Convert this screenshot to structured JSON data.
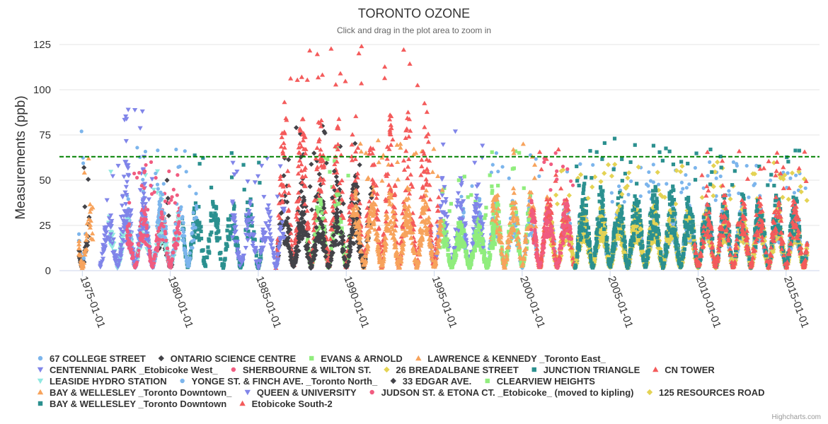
{
  "chart_data": {
    "type": "scatter",
    "title": "TORONTO OZONE",
    "subtitle": "Click and drag in the plot area to zoom in",
    "ylabel": "Measurements (ppb)",
    "ylim": [
      0,
      125
    ],
    "yticks": [
      0,
      25,
      50,
      75,
      100,
      125
    ],
    "xlim": [
      1973.7,
      2016.9
    ],
    "xticks": [
      {
        "label": "1975-01-01",
        "year": 1975
      },
      {
        "label": "1980-01-01",
        "year": 1980
      },
      {
        "label": "1985-01-01",
        "year": 1985
      },
      {
        "label": "1990-01-01",
        "year": 1990
      },
      {
        "label": "1995-01-01",
        "year": 1995
      },
      {
        "label": "2000-01-01",
        "year": 2000
      },
      {
        "label": "2005-01-01",
        "year": 2005
      },
      {
        "label": "2010-01-01",
        "year": 2010
      },
      {
        "label": "2015-01-01",
        "year": 2015
      }
    ],
    "threshold": {
      "value": 63,
      "color": "#008000",
      "style": "dashed"
    },
    "legend_position": "bottom",
    "series": [
      {
        "name": "67 COLLEGE STREET",
        "color": "#7cb5ec",
        "marker": "circle",
        "ranges": [
          [
            1974.8,
            1975.2,
            77
          ],
          [
            1977.5,
            1979.5,
            68
          ],
          [
            1996.5,
            2003.0,
            65
          ],
          [
            2003.0,
            2016.2,
            60
          ]
        ]
      },
      {
        "name": "ONTARIO SCIENCE CENTRE",
        "color": "#434348",
        "marker": "diamond",
        "ranges": [
          [
            1974.8,
            1975.4,
            57
          ],
          [
            1979.3,
            1980.2,
            50
          ],
          [
            1986.0,
            1991.5,
            80
          ]
        ]
      },
      {
        "name": "EVANS & ARNOLD",
        "color": "#90ed7d",
        "marker": "square",
        "ranges": [
          [
            1987.8,
            1990.2,
            68
          ],
          [
            1995.5,
            1998.0,
            52
          ],
          [
            1998.0,
            2000.5,
            66
          ]
        ]
      },
      {
        "name": "LAWRENCE & KENNEDY _Toronto East_",
        "color": "#f7a35c",
        "marker": "triangle",
        "ranges": [
          [
            1974.8,
            1975.6,
            62
          ],
          [
            1990.3,
            1995.2,
            72
          ],
          [
            1998.2,
            2001.5,
            70
          ]
        ]
      },
      {
        "name": "CENTENNIAL PARK _Etobicoke West_",
        "color": "#8085e9",
        "marker": "triangle-down",
        "ranges": [
          [
            1976.9,
            1978.6,
            89
          ],
          [
            1994.8,
            1997.8,
            77
          ]
        ]
      },
      {
        "name": "SHERBOURNE & WILTON ST.",
        "color": "#f15c80",
        "marker": "circle",
        "ranges": [
          [
            1977.8,
            1980.6,
            60
          ],
          [
            2001.0,
            2003.0,
            65
          ]
        ]
      },
      {
        "name": "26 BREADALBANE STREET",
        "color": "#e4d354",
        "marker": "diamond",
        "ranges": [
          [
            2001.5,
            2016.2,
            58
          ]
        ]
      },
      {
        "name": "JUNCTION TRIANGLE",
        "color": "#2b908f",
        "marker": "square",
        "ranges": [
          [
            1980.6,
            1985.2,
            65
          ],
          [
            2003.0,
            2009.5,
            73
          ]
        ]
      },
      {
        "name": "CN TOWER",
        "color": "#f45b5b",
        "marker": "triangle",
        "ranges": [
          [
            1986.0,
            1995.3,
            124
          ],
          [
            2000.5,
            2003.0,
            67
          ]
        ]
      },
      {
        "name": "LEASIDE HYDRO STATION",
        "color": "#91e8e1",
        "marker": "triangle-down",
        "ranges": [
          [
            1976.5,
            1980.5,
            55
          ]
        ]
      },
      {
        "name": "YONGE ST. & FINCH AVE. _Toronto North_",
        "color": "#7cb5ec",
        "marker": "circle",
        "ranges": [
          [
            1979.0,
            1981.5,
            67
          ],
          [
            2008.0,
            2016.2,
            60
          ]
        ]
      },
      {
        "name": "33 EDGAR AVE.",
        "color": "#434348",
        "marker": "diamond",
        "ranges": [
          [
            1986.5,
            1991.0,
            55
          ]
        ]
      },
      {
        "name": "CLEARVIEW HEIGHTS",
        "color": "#90ed7d",
        "marker": "square",
        "ranges": [
          [
            1995.3,
            1998.5,
            50
          ]
        ]
      },
      {
        "name": "BAY & WELLESLEY _Toronto Downtown_",
        "color": "#f7a35c",
        "marker": "triangle",
        "ranges": [
          [
            1990.5,
            1995.5,
            70
          ]
        ]
      },
      {
        "name": "QUEEN & UNIVERSITY",
        "color": "#8085e9",
        "marker": "triangle-down",
        "ranges": [
          [
            1976.0,
            1979.0,
            58
          ],
          [
            1983.5,
            1986.5,
            62
          ]
        ]
      },
      {
        "name": "JUDSON ST. & ETONA CT. _Etobicoke_ (moved to kipling)",
        "color": "#f15c80",
        "marker": "circle",
        "ranges": [
          [
            1977.5,
            1980.5,
            55
          ],
          [
            2000.5,
            2002.8,
            62
          ]
        ]
      },
      {
        "name": "125 RESOURCES ROAD",
        "color": "#e4d354",
        "marker": "diamond",
        "ranges": [
          [
            2003.0,
            2016.2,
            60
          ]
        ]
      },
      {
        "name": "BAY & WELLESLEY _Toronto Downtown",
        "color": "#2b908f",
        "marker": "square",
        "ranges": [
          [
            2003.0,
            2016.2,
            67
          ]
        ]
      },
      {
        "name": "Etobicoke South-2",
        "color": "#f45b5b",
        "marker": "triangle",
        "ranges": [
          [
            2009.8,
            2016.2,
            66
          ]
        ]
      }
    ]
  },
  "credits": "Highcharts.com"
}
